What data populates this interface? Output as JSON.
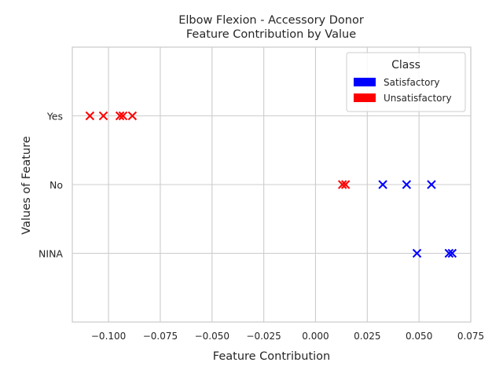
{
  "chart_data": {
    "type": "scatter",
    "title": "Elbow Flexion - Accessory Donor\nFeature Contribution by Value",
    "xlabel": "Feature Contribution",
    "ylabel": "Values of Feature",
    "xlim": [
      -0.1175,
      0.075
    ],
    "x_ticks": [
      -0.1,
      -0.075,
      -0.05,
      -0.025,
      0.0,
      0.025,
      0.05,
      0.075
    ],
    "x_tick_labels": [
      "−0.100",
      "−0.075",
      "−0.050",
      "−0.025",
      "0.000",
      "0.025",
      "0.050",
      "0.075"
    ],
    "categories": [
      "Yes",
      "No",
      "NINA"
    ],
    "grid": true,
    "marker": "x",
    "legend": {
      "title": "Class",
      "placement": "top-right",
      "entries": [
        {
          "name": "Satisfactory",
          "color": "#0000ff"
        },
        {
          "name": "Unsatisfactory",
          "color": "#ff0000"
        }
      ]
    },
    "series": [
      {
        "name": "Satisfactory",
        "color": "#0000ff",
        "points": [
          {
            "x": 0.0325,
            "y": "No"
          },
          {
            "x": 0.044,
            "y": "No"
          },
          {
            "x": 0.056,
            "y": "No"
          },
          {
            "x": 0.049,
            "y": "NINA"
          },
          {
            "x": 0.0645,
            "y": "NINA"
          },
          {
            "x": 0.066,
            "y": "NINA"
          }
        ]
      },
      {
        "name": "Unsatisfactory",
        "color": "#ff0000",
        "points": [
          {
            "x": -0.109,
            "y": "Yes"
          },
          {
            "x": -0.1025,
            "y": "Yes"
          },
          {
            "x": -0.0945,
            "y": "Yes"
          },
          {
            "x": -0.093,
            "y": "Yes"
          },
          {
            "x": -0.0885,
            "y": "Yes"
          },
          {
            "x": 0.013,
            "y": "No"
          },
          {
            "x": 0.0145,
            "y": "No"
          }
        ]
      }
    ]
  }
}
